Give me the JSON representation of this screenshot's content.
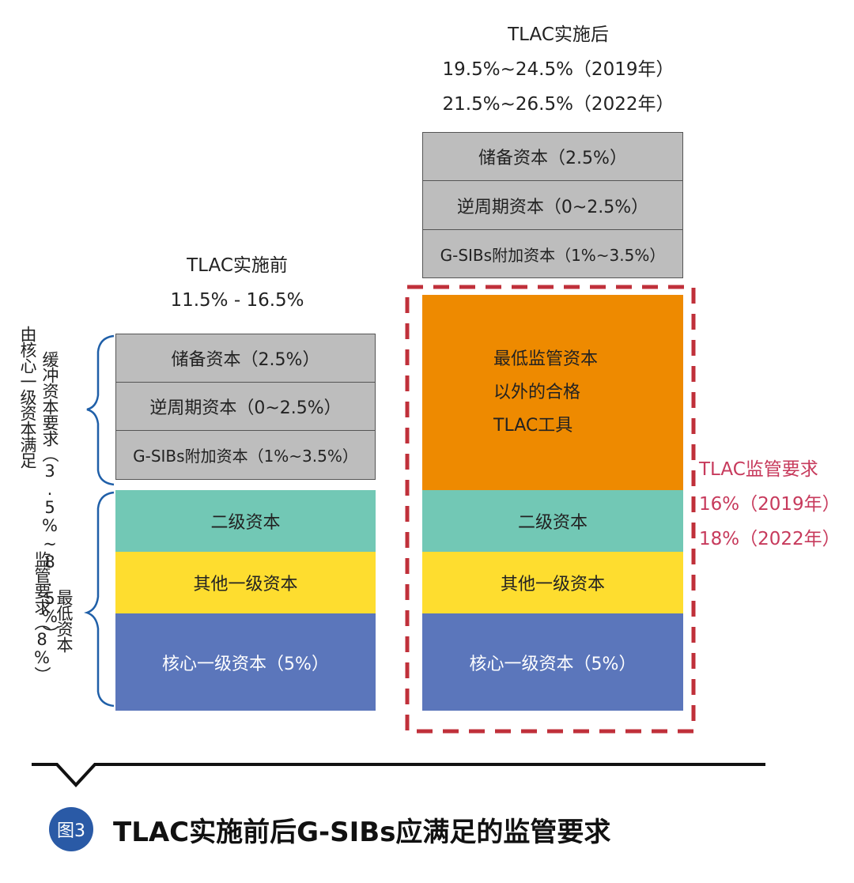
{
  "left": {
    "header_title": "TLAC实施前",
    "header_range": "11.5% - 16.5%",
    "buffer_blocks": [
      "储备资本（2.5%）",
      "逆周期资本（0~2.5%）",
      "G-SIBs附加资本（1%~3.5%）"
    ],
    "capital_blocks": [
      "二级资本",
      "其他一级资本",
      "核心一级资本（5%）"
    ],
    "brace_buffer_outer": "由核心一级资本满足",
    "brace_buffer_inner": "缓冲资本要求（3.5%~8.5%）",
    "brace_min_outer": "监管要求（8%）",
    "brace_min_inner": "最低资本"
  },
  "right": {
    "header_title": "TLAC实施后",
    "header_line2": "19.5%~24.5%（2019年）",
    "header_line3": "21.5%~26.5%（2022年）",
    "buffer_blocks": [
      "储备资本（2.5%）",
      "逆周期资本（0~2.5%）",
      "G-SIBs附加资本（1%~3.5%）"
    ],
    "tlac_block_lines": [
      "最低监管资本",
      "以外的合格",
      "TLAC工具"
    ],
    "capital_blocks": [
      "二级资本",
      "其他一级资本",
      "核心一级资本（5%）"
    ],
    "tlac_note": [
      "TLAC监管要求",
      "16%（2019年）",
      "18%（2022年）"
    ]
  },
  "caption": {
    "badge": "图3",
    "text": "TLAC实施前后G-SIBs应满足的监管要求"
  },
  "colors": {
    "gray": "#bdbdbd",
    "teal": "#72c8b5",
    "yellow": "#fedd2f",
    "blue": "#5b76bb",
    "orange": "#ee8a00",
    "red_dashed": "#c0303a",
    "note_red": "#c73a5c",
    "brace_blue": "#1f5fa8",
    "badge_blue": "#2a5aa6"
  }
}
